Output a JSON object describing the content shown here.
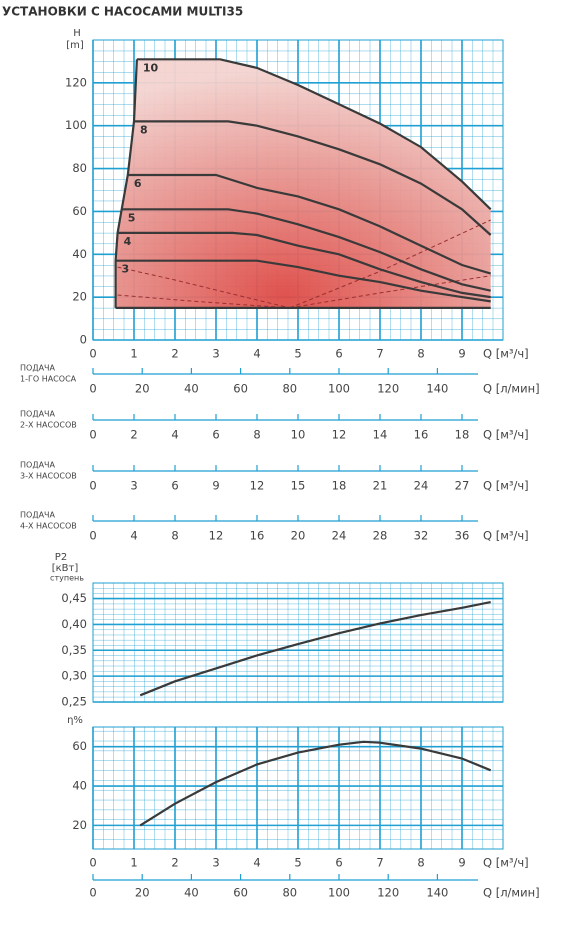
{
  "title": "УСТАНОВКИ С НАСОСАМИ MULTI35",
  "chart_data": [
    {
      "type": "line",
      "ylabel": "H",
      "yunit": "[m]",
      "xlabel": "Q [м³/ч]",
      "xlim": [
        0,
        10
      ],
      "ylim": [
        0,
        140
      ],
      "xticks": [
        0,
        1,
        2,
        3,
        4,
        5,
        6,
        7,
        8,
        9
      ],
      "yticks": [
        0,
        20,
        40,
        60,
        80,
        100,
        120
      ],
      "grid": true,
      "minor_grid": {
        "x": 0.25,
        "y": 5
      },
      "color": "#3a3a3a",
      "fill": true,
      "series": [
        {
          "name": "10",
          "x": [
            1.07,
            3.1,
            4,
            5,
            6,
            7,
            8,
            9,
            9.7
          ],
          "y": [
            131,
            131,
            127,
            119,
            110,
            101,
            90,
            74,
            61
          ]
        },
        {
          "name": "8",
          "x": [
            1.0,
            3.3,
            4,
            5,
            6,
            7,
            8,
            9,
            9.7
          ],
          "y": [
            102,
            102,
            100,
            95,
            89,
            82,
            73,
            61,
            49
          ]
        },
        {
          "name": "6",
          "x": [
            0.85,
            3.0,
            4,
            5,
            6,
            7,
            8,
            9,
            9.7
          ],
          "y": [
            77,
            77,
            71,
            67,
            61,
            53,
            44,
            35,
            31
          ]
        },
        {
          "name": "5",
          "x": [
            0.7,
            3.3,
            4,
            5,
            6,
            7,
            8,
            9,
            9.7
          ],
          "y": [
            61,
            61,
            59,
            54,
            48,
            41,
            33,
            26,
            23
          ]
        },
        {
          "name": "4",
          "x": [
            0.6,
            3.4,
            4,
            5,
            6,
            7,
            8,
            9,
            9.7
          ],
          "y": [
            50,
            50,
            49,
            44,
            40,
            33,
            27,
            22,
            20
          ]
        },
        {
          "name": "3",
          "x": [
            0.55,
            4,
            5,
            6,
            7,
            8,
            9,
            9.7
          ],
          "y": [
            37,
            37,
            34,
            30,
            27,
            23,
            20,
            18
          ]
        }
      ],
      "left_edge": {
        "x": [
          0.55,
          0.55,
          0.6,
          0.7,
          0.85,
          1.0,
          1.07
        ],
        "y": [
          15,
          37,
          50,
          61,
          77,
          102,
          131
        ]
      },
      "base": {
        "x": [
          0.55,
          9.7
        ],
        "y": [
          15,
          15
        ]
      },
      "dashed": [
        {
          "x": [
            0.6,
            2,
            3.5,
            4.8
          ],
          "y": [
            34,
            28,
            21,
            15
          ]
        },
        {
          "x": [
            0.6,
            2.5,
            4.8
          ],
          "y": [
            21,
            18,
            15
          ]
        },
        {
          "x": [
            4.8,
            7,
            9.7
          ],
          "y": [
            15,
            32,
            56
          ]
        },
        {
          "x": [
            4.8,
            7,
            9.7
          ],
          "y": [
            15,
            22,
            30
          ]
        }
      ]
    },
    {
      "type": "line",
      "ylabel": "P2",
      "yunit": "[кВт]",
      "ynote": "ступень",
      "xlim": [
        0,
        10
      ],
      "ylim": [
        0.25,
        0.48
      ],
      "yticks": [
        {
          "value": 0.25,
          "label": "0,25"
        },
        {
          "value": 0.3,
          "label": "0,30"
        },
        {
          "value": 0.35,
          "label": "0,35"
        },
        {
          "value": 0.4,
          "label": "0,40"
        },
        {
          "value": 0.45,
          "label": "0,45"
        }
      ],
      "grid": true,
      "minor_grid": {
        "x": 0.25,
        "y": 0.01
      },
      "color": "#3a3a3a",
      "x": [
        1.15,
        2,
        3,
        4,
        5,
        6,
        7,
        8,
        9,
        9.7
      ],
      "values": [
        0.263,
        0.29,
        0.315,
        0.34,
        0.362,
        0.383,
        0.402,
        0.418,
        0.432,
        0.443
      ]
    },
    {
      "type": "line",
      "ylabel": "η%",
      "xlabel": "Q [м³/ч]",
      "xlim": [
        0,
        10
      ],
      "ylim": [
        8,
        70
      ],
      "xticks": [
        0,
        1,
        2,
        3,
        4,
        5,
        6,
        7,
        8,
        9
      ],
      "yticks": [
        20,
        40,
        60
      ],
      "grid": true,
      "minor_grid": {
        "x": 0.25,
        "y": 5
      },
      "color": "#3a3a3a",
      "x": [
        1.15,
        2,
        3,
        4,
        5,
        6,
        6.6,
        7,
        8,
        9,
        9.7
      ],
      "values": [
        20,
        31,
        42,
        51,
        57,
        61,
        62.5,
        62,
        59,
        54,
        48
      ],
      "x2lim": [
        0,
        166.67
      ],
      "x2ticks": [
        0,
        20,
        40,
        60,
        80,
        100,
        120,
        140
      ],
      "x2label": "Q [л/мин]"
    }
  ],
  "flow_scales": [
    {
      "label": [
        "ПОДАЧА",
        "1-ГО НАСОСА"
      ],
      "unit": "Q [л/мин]",
      "xlim": [
        0,
        166.67
      ],
      "xticks": [
        0,
        20,
        40,
        60,
        80,
        100,
        120,
        140
      ]
    },
    {
      "label": [
        "ПОДАЧА",
        "2-Х НАСОСОВ"
      ],
      "unit": "Q [м³/ч]",
      "xlim": [
        0,
        20
      ],
      "xticks": [
        0,
        2,
        4,
        6,
        8,
        10,
        12,
        14,
        16,
        18
      ]
    },
    {
      "label": [
        "ПОДАЧА",
        "3-Х НАСОСОВ"
      ],
      "unit": "Q [м³/ч]",
      "xlim": [
        0,
        30
      ],
      "xticks": [
        0,
        3,
        6,
        9,
        12,
        15,
        18,
        21,
        24,
        27
      ]
    },
    {
      "label": [
        "ПОДАЧА",
        "4-Х НАСОСОВ"
      ],
      "unit": "Q [м³/ч]",
      "xlim": [
        0,
        40
      ],
      "xticks": [
        0,
        4,
        8,
        12,
        16,
        20,
        24,
        28,
        32,
        36
      ]
    }
  ]
}
